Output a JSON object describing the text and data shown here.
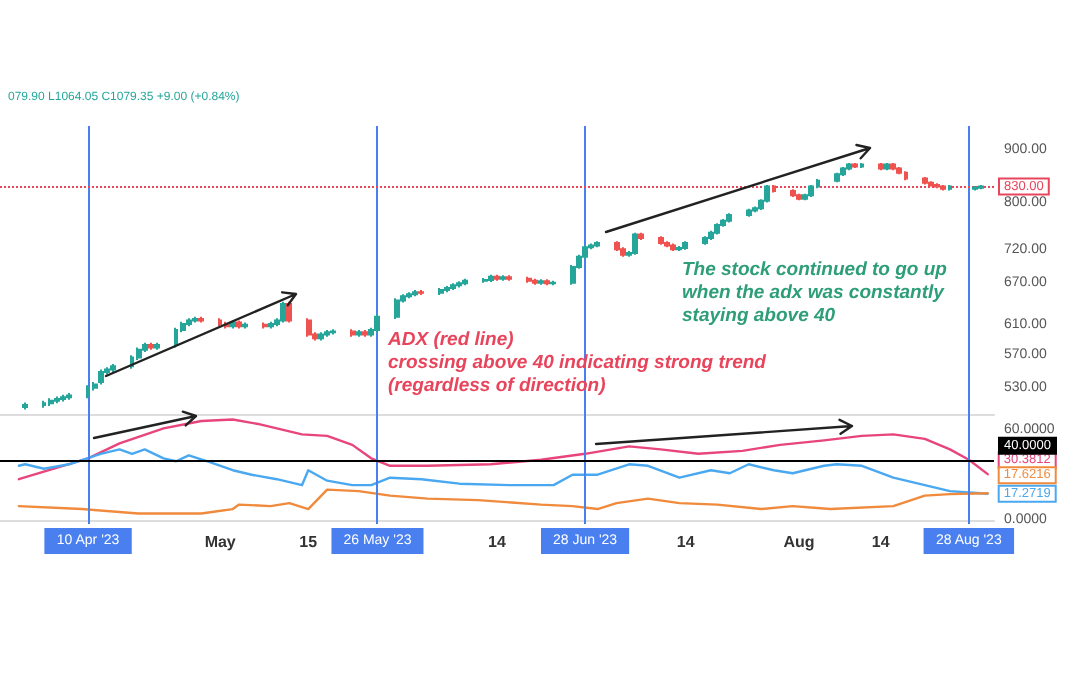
{
  "chart_data": [
    {
      "type": "candlestick",
      "log": "y",
      "tick_labels": "y",
      "annotations": [
        "079.90 L1064.05 C1079.35 +9.00 (+0.84%)",
        "ADX (red line)\ncrossing above 40 indicating strong trend\n(regardless of direction)",
        "The stock continued to go up\nwhen the adx was constantly\nstaying above 40"
      ],
      "x": [
        "2023-03-31",
        "2023-04-03",
        "2023-04-04",
        "2023-04-05",
        "2023-04-06",
        "2023-04-07",
        "2023-04-10",
        "2023-04-11",
        "2023-04-12",
        "2023-04-13",
        "2023-04-14",
        "2023-04-17",
        "2023-04-18",
        "2023-04-19",
        "2023-04-20",
        "2023-04-21",
        "2023-04-24",
        "2023-04-25",
        "2023-04-26",
        "2023-04-27",
        "2023-04-28",
        "2023-05-01",
        "2023-05-02",
        "2023-05-03",
        "2023-05-04",
        "2023-05-05",
        "2023-05-08",
        "2023-05-09",
        "2023-05-10",
        "2023-05-11",
        "2023-05-12",
        "2023-05-15",
        "2023-05-16",
        "2023-05-17",
        "2023-05-18",
        "2023-05-19",
        "2023-05-22",
        "2023-05-23",
        "2023-05-24",
        "2023-05-25",
        "2023-05-26",
        "2023-05-29",
        "2023-05-30",
        "2023-05-31",
        "2023-06-01",
        "2023-06-02",
        "2023-06-05",
        "2023-06-06",
        "2023-06-07",
        "2023-06-08",
        "2023-06-09",
        "2023-06-12",
        "2023-06-13",
        "2023-06-14",
        "2023-06-15",
        "2023-06-16",
        "2023-06-19",
        "2023-06-20",
        "2023-06-21",
        "2023-06-22",
        "2023-06-23",
        "2023-06-26",
        "2023-06-27",
        "2023-06-28",
        "2023-06-29",
        "2023-06-30",
        "2023-07-03",
        "2023-07-04",
        "2023-07-05",
        "2023-07-06",
        "2023-07-07",
        "2023-07-10",
        "2023-07-11",
        "2023-07-12",
        "2023-07-13",
        "2023-07-14",
        "2023-07-17",
        "2023-07-18",
        "2023-07-19",
        "2023-07-20",
        "2023-07-21",
        "2023-07-24",
        "2023-07-25",
        "2023-07-26",
        "2023-07-27",
        "2023-07-28",
        "2023-07-31",
        "2023-08-01",
        "2023-08-02",
        "2023-08-03",
        "2023-08-04",
        "2023-08-07",
        "2023-08-08",
        "2023-08-09",
        "2023-08-10",
        "2023-08-11",
        "2023-08-14",
        "2023-08-15",
        "2023-08-16",
        "2023-08-17",
        "2023-08-18",
        "2023-08-21",
        "2023-08-22",
        "2023-08-23",
        "2023-08-24",
        "2023-08-25",
        "2023-08-29",
        "2023-08-30"
      ],
      "ohlc": [
        [
          508,
          513,
          505,
          510
        ],
        [
          510,
          515,
          507,
          512
        ],
        [
          512,
          518,
          509,
          515
        ],
        [
          515,
          520,
          512,
          517
        ],
        [
          517,
          522,
          514,
          519
        ],
        [
          519,
          524,
          516,
          521
        ],
        [
          521,
          533,
          518,
          530
        ],
        [
          530,
          537,
          527,
          534
        ],
        [
          537,
          552,
          534,
          549
        ],
        [
          549,
          555,
          546,
          552
        ],
        [
          552,
          559,
          549,
          556
        ],
        [
          556,
          570,
          553,
          567
        ],
        [
          567,
          580,
          564,
          577
        ],
        [
          577,
          586,
          574,
          583
        ],
        [
          583,
          586,
          577,
          580
        ],
        [
          580,
          586,
          577,
          583
        ],
        [
          583,
          606,
          580,
          603
        ],
        [
          603,
          614,
          600,
          611
        ],
        [
          611,
          619,
          608,
          616
        ],
        [
          616,
          621,
          613,
          618
        ],
        [
          618,
          621,
          613,
          616
        ],
        [
          616,
          619,
          608,
          611
        ],
        [
          611,
          614,
          605,
          608
        ],
        [
          608,
          616,
          605,
          613
        ],
        [
          613,
          616,
          605,
          608
        ],
        [
          608,
          613,
          605,
          610
        ],
        [
          610,
          613,
          605,
          608
        ],
        [
          608,
          614,
          605,
          611
        ],
        [
          611,
          619,
          608,
          616
        ],
        [
          616,
          642,
          613,
          639
        ],
        [
          639,
          642,
          613,
          616
        ],
        [
          616,
          619,
          594,
          597
        ],
        [
          597,
          600,
          589,
          592
        ],
        [
          592,
          600,
          589,
          597
        ],
        [
          597,
          603,
          594,
          600
        ],
        [
          600,
          604,
          597,
          601
        ],
        [
          601,
          604,
          594,
          597
        ],
        [
          597,
          603,
          594,
          600
        ],
        [
          600,
          603,
          594,
          597
        ],
        [
          597,
          606,
          594,
          603
        ],
        [
          603,
          624,
          600,
          621
        ],
        [
          621,
          647,
          618,
          644
        ],
        [
          644,
          653,
          641,
          650
        ],
        [
          650,
          656,
          647,
          653
        ],
        [
          653,
          659,
          650,
          656
        ],
        [
          656,
          659,
          652,
          655
        ],
        [
          655,
          662,
          652,
          659
        ],
        [
          659,
          665,
          656,
          662
        ],
        [
          662,
          669,
          659,
          666
        ],
        [
          666,
          672,
          663,
          669
        ],
        [
          669,
          676,
          666,
          673
        ],
        [
          673,
          677,
          670,
          674
        ],
        [
          674,
          682,
          671,
          679
        ],
        [
          679,
          682,
          673,
          676
        ],
        [
          676,
          681,
          673,
          678
        ],
        [
          678,
          681,
          673,
          676
        ],
        [
          676,
          679,
          670,
          673
        ],
        [
          673,
          676,
          667,
          670
        ],
        [
          670,
          675,
          667,
          672
        ],
        [
          672,
          675,
          666,
          669
        ],
        [
          669,
          673,
          666,
          670
        ],
        [
          670,
          697,
          667,
          694
        ],
        [
          694,
          713,
          691,
          710
        ],
        [
          710,
          728,
          707,
          725
        ],
        [
          725,
          731,
          722,
          728
        ],
        [
          728,
          735,
          725,
          732
        ],
        [
          732,
          735,
          719,
          722
        ],
        [
          722,
          725,
          710,
          713
        ],
        [
          713,
          719,
          710,
          716
        ],
        [
          716,
          749,
          713,
          746
        ],
        [
          746,
          749,
          737,
          740
        ],
        [
          740,
          743,
          729,
          732
        ],
        [
          732,
          735,
          725,
          728
        ],
        [
          728,
          731,
          719,
          722
        ],
        [
          722,
          727,
          719,
          724
        ],
        [
          724,
          735,
          721,
          732
        ],
        [
          732,
          743,
          729,
          740
        ],
        [
          740,
          752,
          737,
          749
        ],
        [
          749,
          765,
          746,
          762
        ],
        [
          762,
          772,
          759,
          769
        ],
        [
          769,
          782,
          766,
          779
        ],
        [
          779,
          790,
          776,
          787
        ],
        [
          787,
          794,
          784,
          791
        ],
        [
          791,
          807,
          788,
          804
        ],
        [
          804,
          833,
          801,
          830
        ],
        [
          830,
          833,
          819,
          822
        ],
        [
          822,
          825,
          811,
          814
        ],
        [
          814,
          817,
          805,
          808
        ],
        [
          808,
          817,
          805,
          814
        ],
        [
          814,
          833,
          811,
          830
        ],
        [
          830,
          844,
          827,
          841
        ],
        [
          841,
          856,
          838,
          853
        ],
        [
          853,
          867,
          850,
          864
        ],
        [
          864,
          875,
          861,
          872
        ],
        [
          872,
          875,
          865,
          868
        ],
        [
          868,
          875,
          865,
          872
        ],
        [
          872,
          875,
          861,
          864
        ],
        [
          864,
          875,
          861,
          872
        ],
        [
          872,
          875,
          861,
          864
        ],
        [
          864,
          867,
          853,
          856
        ],
        [
          856,
          859,
          842,
          845
        ],
        [
          845,
          848,
          834,
          837
        ],
        [
          837,
          840,
          830,
          833
        ],
        [
          833,
          836,
          827,
          830
        ],
        [
          830,
          833,
          823,
          826
        ],
        [
          826,
          833,
          823,
          830
        ],
        [
          826,
          831,
          823,
          828
        ],
        [
          828,
          833,
          825,
          830
        ]
      ],
      "xlim": [
        "2023-03-27",
        "2023-09-01"
      ],
      "ylim": [
        500,
        950
      ],
      "yticks": [
        {
          "value": 530,
          "label": "530.00"
        },
        {
          "value": 570,
          "label": "570.00"
        },
        {
          "value": 610,
          "label": "610.00"
        },
        {
          "value": 670,
          "label": "670.00"
        },
        {
          "value": 720,
          "label": "720.00"
        },
        {
          "value": 800,
          "label": "800.00"
        },
        {
          "value": 900,
          "label": "900.00"
        }
      ],
      "ref_lines": [
        {
          "axis": "x",
          "value": "2023-04-10",
          "label": null,
          "color": "#4a7ff0"
        },
        {
          "axis": "x",
          "value": "2023-05-26",
          "label": null,
          "color": "#4a7ff0"
        },
        {
          "axis": "x",
          "value": "2023-06-28",
          "label": null,
          "color": "#4a7ff0"
        },
        {
          "axis": "x",
          "value": "2023-08-28",
          "label": null,
          "color": "#4a7ff0"
        },
        {
          "axis": "y",
          "value": 830,
          "label": "830.00",
          "color": "#e8455c",
          "line_style": "dotted"
        }
      ]
    },
    {
      "type": "line",
      "marker": "none",
      "series": [
        {
          "color": "#e8457a",
          "x": [
            "2023-03-30",
            "2023-04-10",
            "2023-04-15",
            "2023-04-22",
            "2023-04-28",
            "2023-05-03",
            "2023-05-07",
            "2023-05-14",
            "2023-05-18",
            "2023-05-22",
            "2023-05-25",
            "2023-05-28",
            "2023-06-03",
            "2023-06-13",
            "2023-06-21",
            "2023-06-28",
            "2023-07-05",
            "2023-07-10",
            "2023-07-16",
            "2023-07-23",
            "2023-07-29",
            "2023-08-05",
            "2023-08-11",
            "2023-08-16",
            "2023-08-21",
            "2023-08-25",
            "2023-08-28",
            "2023-08-31"
          ],
          "values": [
            27,
            41,
            51,
            61,
            66,
            67,
            64,
            57,
            56,
            50,
            41,
            36,
            36,
            37,
            40,
            44,
            49,
            47,
            44,
            46,
            50,
            53,
            56,
            57,
            54,
            47,
            40,
            30.3812
          ],
          "value_labels": [
            null,
            null,
            null,
            null,
            null,
            null,
            null,
            null,
            null,
            null,
            null,
            null,
            null,
            null,
            null,
            null,
            null,
            null,
            null,
            null,
            null,
            null,
            null,
            null,
            null,
            null,
            null,
            "30.3812"
          ]
        },
        {
          "color": "#4aa8f0",
          "x": [
            "2023-03-30",
            "2023-03-31",
            "2023-04-03",
            "2023-04-07",
            "2023-04-12",
            "2023-04-15",
            "2023-04-17",
            "2023-04-19",
            "2023-04-22",
            "2023-04-24",
            "2023-04-26",
            "2023-04-29",
            "2023-05-03",
            "2023-05-06",
            "2023-05-10",
            "2023-05-14",
            "2023-05-15",
            "2023-05-18",
            "2023-05-22",
            "2023-05-25",
            "2023-05-28",
            "2023-06-02",
            "2023-06-08",
            "2023-06-16",
            "2023-06-23",
            "2023-06-26",
            "2023-06-30",
            "2023-07-05",
            "2023-07-08",
            "2023-07-13",
            "2023-07-18",
            "2023-07-21",
            "2023-07-24",
            "2023-07-28",
            "2023-07-31",
            "2023-08-05",
            "2023-08-07",
            "2023-08-11",
            "2023-08-16",
            "2023-08-21",
            "2023-08-25",
            "2023-08-31"
          ],
          "values": [
            36,
            37,
            34,
            37,
            44,
            47,
            44,
            47,
            41,
            39,
            43,
            39,
            33,
            30,
            27,
            23,
            33,
            26,
            23,
            23,
            28,
            27,
            24,
            23,
            23,
            30,
            30,
            37,
            36,
            28,
            33,
            31,
            37,
            33,
            31,
            36,
            37,
            36,
            28,
            23,
            19,
            17.2719
          ],
          "value_labels": [
            null,
            null,
            null,
            null,
            null,
            null,
            null,
            null,
            null,
            null,
            null,
            null,
            null,
            null,
            null,
            null,
            null,
            null,
            null,
            null,
            null,
            null,
            null,
            null,
            null,
            null,
            null,
            null,
            null,
            null,
            null,
            null,
            null,
            null,
            null,
            null,
            null,
            null,
            null,
            null,
            null,
            "17.2719"
          ]
        },
        {
          "color": "#f08a3c",
          "x": [
            "2023-03-30",
            "2023-04-09",
            "2023-04-18",
            "2023-04-28",
            "2023-05-03",
            "2023-05-04",
            "2023-05-09",
            "2023-05-12",
            "2023-05-15",
            "2023-05-18",
            "2023-05-23",
            "2023-05-28",
            "2023-06-03",
            "2023-06-11",
            "2023-06-21",
            "2023-06-26",
            "2023-06-30",
            "2023-07-03",
            "2023-07-08",
            "2023-07-13",
            "2023-07-19",
            "2023-07-26",
            "2023-07-31",
            "2023-08-06",
            "2023-08-16",
            "2023-08-21",
            "2023-08-25",
            "2023-08-31"
          ],
          "values": [
            9,
            7,
            4,
            4,
            7,
            10,
            9,
            11,
            7,
            20,
            19,
            16,
            14,
            13,
            10,
            9,
            7,
            11,
            14,
            11,
            10,
            7,
            9,
            7,
            9,
            16,
            17,
            17.6216
          ],
          "value_labels": [
            null,
            null,
            null,
            null,
            null,
            null,
            null,
            null,
            null,
            null,
            null,
            null,
            null,
            null,
            null,
            null,
            null,
            null,
            null,
            null,
            null,
            null,
            null,
            null,
            null,
            null,
            null,
            "17.6216"
          ]
        }
      ],
      "xlim": [
        "2023-03-27",
        "2023-09-01"
      ],
      "xticks": [
        {
          "value": "2023-05-01",
          "label": "May"
        },
        {
          "value": "2023-05-15",
          "label": "15"
        },
        {
          "value": "2023-06-14",
          "label": "14"
        },
        {
          "value": "2023-07-14",
          "label": "14"
        },
        {
          "value": "2023-08-01",
          "label": "Aug"
        },
        {
          "value": "2023-08-14",
          "label": "14"
        }
      ],
      "ylim": [
        -3,
        72
      ],
      "yticks": [
        {
          "value": 0,
          "label": "0.0000"
        },
        {
          "value": 60,
          "label": "60.0000"
        }
      ],
      "ref_lines": [
        {
          "axis": "x",
          "value": "2023-04-10",
          "label": "10 Apr '23",
          "color": "#4a7ff0"
        },
        {
          "axis": "x",
          "value": "2023-05-26",
          "label": "26 May '23",
          "color": "#4a7ff0"
        },
        {
          "axis": "x",
          "value": "2023-06-28",
          "label": "28 Jun '23",
          "color": "#4a7ff0"
        },
        {
          "axis": "x",
          "value": "2023-08-28",
          "label": "28 Aug '23",
          "color": "#4a7ff0"
        },
        {
          "axis": "y",
          "value": 40,
          "label": "40.0000",
          "color": "#000000"
        }
      ]
    }
  ]
}
